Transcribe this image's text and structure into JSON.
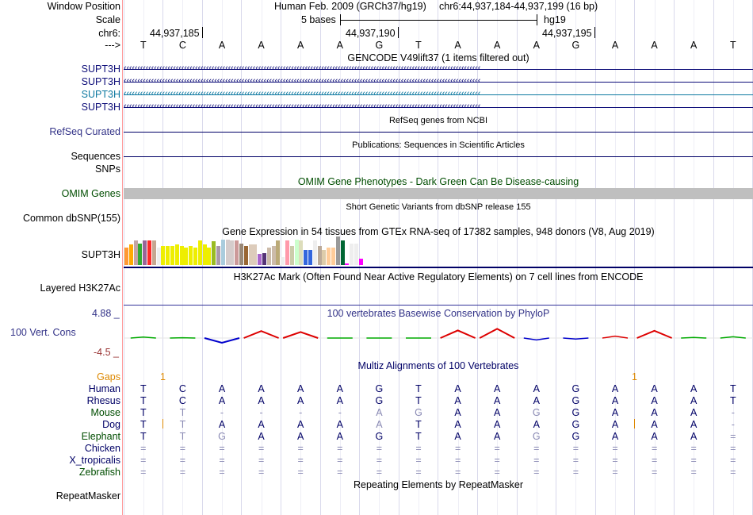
{
  "header": {
    "window_position_label": "Window Position",
    "assembly": "Human Feb. 2009 (GRCh37/hg19)",
    "region": "chr6:44,937,184-44,937,199 (16 bp)",
    "scale_label": "Scale",
    "scale_text": "5 bases",
    "scale_db": "hg19",
    "chrom_label": "chr6:",
    "ticks": [
      "44,937,185",
      "44,937,190",
      "44,937,195"
    ],
    "strand_label": "--->",
    "bases": [
      "T",
      "C",
      "A",
      "A",
      "A",
      "A",
      "G",
      "T",
      "A",
      "A",
      "A",
      "G",
      "A",
      "A",
      "A",
      "T"
    ]
  },
  "tracks": {
    "gencode": {
      "title": "GENCODE V49lift37 (1 items filtered out)",
      "genes": [
        "SUPT3H",
        "SUPT3H",
        "SUPT3H",
        "SUPT3H"
      ],
      "strand_glyph": "‹",
      "colors": [
        "#0c0c78",
        "#0c0c78",
        "#0c78a0",
        "#0c0c78"
      ]
    },
    "refseq": {
      "title": "RefSeq genes from NCBI",
      "label": "RefSeq Curated"
    },
    "publications": {
      "title": "Publications: Sequences in Scientific Articles",
      "label": "Sequences"
    },
    "snps_label": "SNPs",
    "omim": {
      "title": "OMIM Gene Phenotypes - Dark Green Can Be Disease-causing",
      "label": "OMIM Genes"
    },
    "dbsnp": {
      "title": "Short Genetic Variants from dbSNP release 155",
      "label": "Common dbSNP(155)"
    },
    "gtex": {
      "title": "Gene Expression in 54 tissues from GTEx RNA-seq of 17382 samples, 948 donors (V8, Aug 2019)",
      "label": "SUPT3H",
      "bars": [
        {
          "v": 0.62,
          "c": "#ff9933"
        },
        {
          "v": 0.72,
          "c": "#ffaa00"
        },
        {
          "v": 0.86,
          "c": "#c5a5a5"
        },
        {
          "v": 0.76,
          "c": "#33aa33"
        },
        {
          "v": 0.86,
          "c": "#996699"
        },
        {
          "v": 0.86,
          "c": "#ff2a2a"
        },
        {
          "v": 0.86,
          "c": "#c6a690"
        },
        {
          "v": 0.62,
          "c": "#eeeeee"
        },
        {
          "v": 0.66,
          "c": "#eeee00"
        },
        {
          "v": 0.66,
          "c": "#eeee00"
        },
        {
          "v": 0.66,
          "c": "#eeee00"
        },
        {
          "v": 0.72,
          "c": "#eeee00"
        },
        {
          "v": 0.66,
          "c": "#eeee00"
        },
        {
          "v": 0.62,
          "c": "#eeee00"
        },
        {
          "v": 0.66,
          "c": "#eeee00"
        },
        {
          "v": 0.62,
          "c": "#eeee00"
        },
        {
          "v": 0.86,
          "c": "#eeee00"
        },
        {
          "v": 0.72,
          "c": "#eeee00"
        },
        {
          "v": 0.62,
          "c": "#eeee00"
        },
        {
          "v": 0.82,
          "c": "#99bb22"
        },
        {
          "v": 0.66,
          "c": "#aa99aa"
        },
        {
          "v": 0.9,
          "c": "#aaccdd"
        },
        {
          "v": 0.9,
          "c": "#d5cccc"
        },
        {
          "v": 0.86,
          "c": "#d5cccc"
        },
        {
          "v": 0.86,
          "c": "#cc9999"
        },
        {
          "v": 0.76,
          "c": "#998877"
        },
        {
          "v": 0.66,
          "c": "#996633"
        },
        {
          "v": 0.72,
          "c": "#ddccbb"
        },
        {
          "v": 0.72,
          "c": "#ddccbb"
        },
        {
          "v": 0.38,
          "c": "#aa66cc"
        },
        {
          "v": 0.42,
          "c": "#553377"
        },
        {
          "v": 0.62,
          "c": "#ccbbaa"
        },
        {
          "v": 0.66,
          "c": "#ccbbaa"
        },
        {
          "v": 0.86,
          "c": "#bbaa77"
        },
        {
          "v": 0.28,
          "c": "#eeeeee"
        },
        {
          "v": 0.86,
          "c": "#ff99aa"
        },
        {
          "v": 0.66,
          "c": "#ccccaa"
        },
        {
          "v": 0.9,
          "c": "#ccffcc"
        },
        {
          "v": 0.86,
          "c": "#ddddbb"
        },
        {
          "v": 0.52,
          "c": "#3366dd"
        },
        {
          "v": 0.52,
          "c": "#3366dd"
        },
        {
          "v": 0.86,
          "c": "#eeeeee"
        },
        {
          "v": 0.66,
          "c": "#bbaa99"
        },
        {
          "v": 0.52,
          "c": "#ddccaa"
        },
        {
          "v": 0.62,
          "c": "#ffcc99"
        },
        {
          "v": 0.62,
          "c": "#ffcc99"
        },
        {
          "v": 1.0,
          "c": "#999999"
        },
        {
          "v": 0.86,
          "c": "#006633"
        },
        {
          "v": 0.06,
          "c": "#ff00ff"
        },
        {
          "v": 0.76,
          "c": "#eeeeee"
        },
        {
          "v": 0.76,
          "c": "#eeeeee"
        },
        {
          "v": 0.22,
          "c": "#ff00ff"
        },
        {
          "v": 0.0,
          "c": "#ffffff"
        },
        {
          "v": 0.0,
          "c": "#ffffff"
        }
      ]
    },
    "h3k27ac": {
      "title": "H3K27Ac Mark (Often Found Near Active Regulatory Elements) on 7 cell lines from ENCODE",
      "label": "Layered H3K27Ac"
    },
    "cons": {
      "title": "100 vertebrates Basewise Conservation by PhyloP",
      "label": "100 Vert. Cons",
      "ymax": "4.88 _",
      "ymin": "-4.5 _",
      "scores": [
        0.3,
        0.1,
        -1.5,
        2.2,
        1.9,
        0.0,
        0.0,
        0.0,
        2.4,
        2.9,
        -0.6,
        -0.3,
        0.6,
        2.3,
        0.2,
        0.4
      ]
    },
    "multiz": {
      "title": "Multiz Alignments of 100 Vertebrates",
      "gaps_label": "Gaps",
      "gaps_marks": [
        "1",
        "1"
      ],
      "species": [
        {
          "name": "Human",
          "color": "#000066",
          "bases": [
            "T",
            "C",
            "A",
            "A",
            "A",
            "A",
            "G",
            "T",
            "A",
            "A",
            "A",
            "G",
            "A",
            "A",
            "A",
            "T"
          ]
        },
        {
          "name": "Rhesus",
          "color": "#000066",
          "bases": [
            "T",
            "C",
            "A",
            "A",
            "A",
            "A",
            "G",
            "T",
            "A",
            "A",
            "A",
            "G",
            "A",
            "A",
            "A",
            "T"
          ]
        },
        {
          "name": "Mouse",
          "color": "#004d00",
          "bases": [
            "T",
            "T",
            "-",
            "-",
            "-",
            "-",
            "A",
            "G",
            "A",
            "A",
            "G",
            "G",
            "A",
            "A",
            "A",
            "-"
          ]
        },
        {
          "name": "Dog",
          "color": "#000066",
          "bases": [
            "T",
            "T",
            "A",
            "A",
            "A",
            "A",
            "A",
            "T",
            "A",
            "A",
            "A",
            "G",
            "A",
            "A",
            "A",
            "-"
          ]
        },
        {
          "name": "Elephant",
          "color": "#004d00",
          "bases": [
            "T",
            "T",
            "G",
            "A",
            "A",
            "A",
            "G",
            "T",
            "A",
            "A",
            "G",
            "G",
            "A",
            "A",
            "A",
            "="
          ]
        },
        {
          "name": "Chicken",
          "color": "#000066",
          "bases": [
            "=",
            "=",
            "=",
            "=",
            "=",
            "=",
            "=",
            "=",
            "=",
            "=",
            "=",
            "=",
            "=",
            "=",
            "=",
            "="
          ]
        },
        {
          "name": "X_tropicalis",
          "color": "#000066",
          "bases": [
            "=",
            "=",
            "=",
            "=",
            "=",
            "=",
            "=",
            "=",
            "=",
            "=",
            "=",
            "=",
            "=",
            "=",
            "=",
            "="
          ]
        },
        {
          "name": "Zebrafish",
          "color": "#004d00",
          "bases": [
            "=",
            "=",
            "=",
            "=",
            "=",
            "=",
            "=",
            "=",
            "=",
            "=",
            "=",
            "=",
            "=",
            "=",
            "=",
            "="
          ]
        }
      ]
    },
    "repeatmasker": {
      "title": "Repeating Elements by RepeatMasker",
      "label": "RepeatMasker"
    }
  }
}
